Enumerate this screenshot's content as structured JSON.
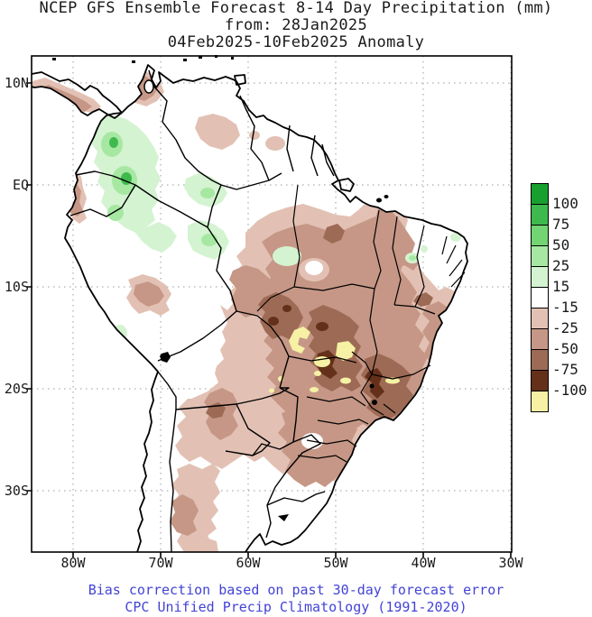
{
  "title": {
    "line1": "NCEP GFS Ensemble Forecast 8-14 Day Precipitation (mm)",
    "line2": "from: 28Jan2025",
    "line3": "04Feb2025-10Feb2025 Anomaly"
  },
  "axes": {
    "lat": [
      "10N",
      "EQ",
      "10S",
      "20S",
      "30S"
    ],
    "lon": [
      "80W",
      "70W",
      "60W",
      "50W",
      "40W",
      "30W"
    ]
  },
  "legend": {
    "values": [
      "100",
      "75",
      "50",
      "25",
      "15",
      "-15",
      "-25",
      "-50",
      "-75",
      "-100"
    ],
    "colors": [
      "#17a02e",
      "#3eb94d",
      "#72d472",
      "#a6e8a2",
      "#d4f3d1",
      "#ffffff",
      "#e2c1b4",
      "#c69786",
      "#9d6a55",
      "#653019",
      "#f6f1a4"
    ]
  },
  "footer": {
    "line1": "Bias correction based on past 30-day forecast error",
    "line2": "CPC Unified Precip Climatology (1991-2020)",
    "text_color": "#4343d6"
  }
}
